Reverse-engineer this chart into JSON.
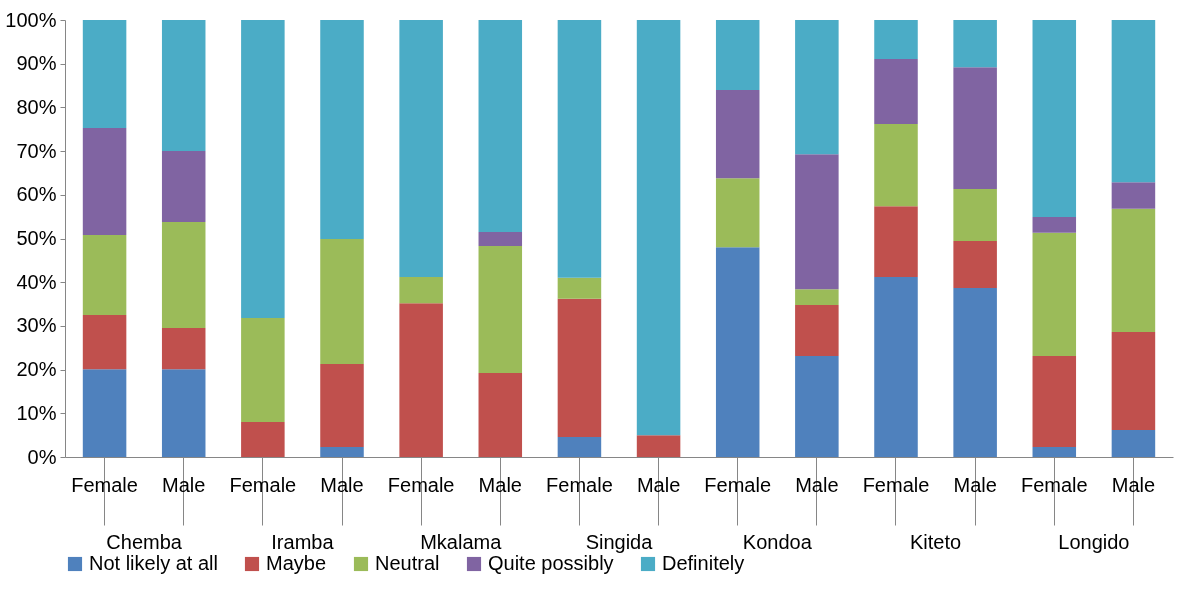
{
  "chart_data": {
    "type": "bar",
    "stacked": true,
    "grid": false,
    "legend": "bottom",
    "categories": [
      "Female",
      "Male",
      "Female",
      "Male",
      "Female",
      "Male",
      "Female",
      "Male",
      "Female",
      "Male",
      "Female",
      "Male",
      "Female",
      "Male"
    ],
    "annotations": [
      "Chemba",
      "Iramba",
      "Mkalama",
      "Singida",
      "Kondoa",
      "Kiteto",
      "Longido"
    ],
    "ylim": [
      0,
      100
    ],
    "yticks": [
      {
        "value": 0,
        "label": "0%"
      },
      {
        "value": 10,
        "label": "10%"
      },
      {
        "value": 20,
        "label": "20%"
      },
      {
        "value": 30,
        "label": "30%"
      },
      {
        "value": 40,
        "label": "40%"
      },
      {
        "value": 50,
        "label": "50%"
      },
      {
        "value": 60,
        "label": "60%"
      },
      {
        "value": 70,
        "label": "70%"
      },
      {
        "value": 80,
        "label": "80%"
      },
      {
        "value": 90,
        "label": "90%"
      },
      {
        "value": 100,
        "label": "100%"
      }
    ],
    "series": [
      {
        "name": "Not likely at all",
        "color": "#4f81bd",
        "values": [
          20.1,
          20.1,
          0,
          2.3,
          0,
          0,
          4.6,
          0,
          48,
          23.1,
          41.2,
          38.7,
          2.3,
          6.2
        ]
      },
      {
        "name": "Maybe",
        "color": "#c0504d",
        "values": [
          12.4,
          9.4,
          8,
          19,
          35.2,
          19.2,
          31.6,
          5,
          0,
          11.7,
          16.2,
          10.7,
          20.8,
          22.4
        ]
      },
      {
        "name": "Neutral",
        "color": "#9bbb59",
        "values": [
          18.3,
          24.3,
          23.8,
          28.6,
          6,
          29.1,
          4.8,
          0,
          15.8,
          3.6,
          18.8,
          11.9,
          28.2,
          28.2
        ]
      },
      {
        "name": "Quite possibly",
        "color": "#8064a2",
        "values": [
          24.5,
          16.2,
          0,
          0,
          0,
          3.2,
          0,
          0,
          20.2,
          30.9,
          14.9,
          27.9,
          3.6,
          6.1
        ]
      },
      {
        "name": "Definitely",
        "color": "#4bacc6",
        "values": [
          24.7,
          30,
          68.2,
          50.1,
          58.8,
          48.5,
          59,
          95,
          16,
          30.7,
          8.9,
          10.8,
          45.1,
          37.1
        ]
      }
    ]
  }
}
